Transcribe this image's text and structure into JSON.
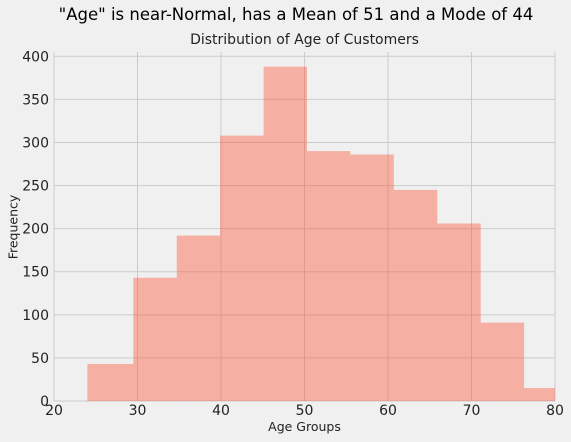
{
  "figure": {
    "suptitle": "\"Age\" is near-Normal, has a Mean of 51 and a Mode of 44"
  },
  "chart_data": {
    "type": "bar",
    "title": "Distribution of Age of Customers",
    "xlabel": "Age Groups",
    "ylabel": "Frequency",
    "bin_edges": [
      24,
      29.5,
      34.7,
      39.9,
      45.1,
      50.3,
      55.5,
      60.7,
      65.9,
      71.1,
      76.3,
      81.5
    ],
    "values": [
      43,
      143,
      192,
      308,
      388,
      290,
      286,
      245,
      206,
      91,
      15
    ],
    "xlim": [
      20,
      80
    ],
    "ylim": [
      0,
      405
    ],
    "xticks": [
      20,
      30,
      40,
      50,
      60,
      70,
      80
    ],
    "yticks": [
      0,
      50,
      100,
      150,
      200,
      250,
      300,
      350,
      400
    ],
    "grid": true,
    "bar_color": "#fc4f30",
    "bar_alpha": 0.4,
    "background": "#f0f0f0",
    "grid_color": "#cbcbcb"
  }
}
